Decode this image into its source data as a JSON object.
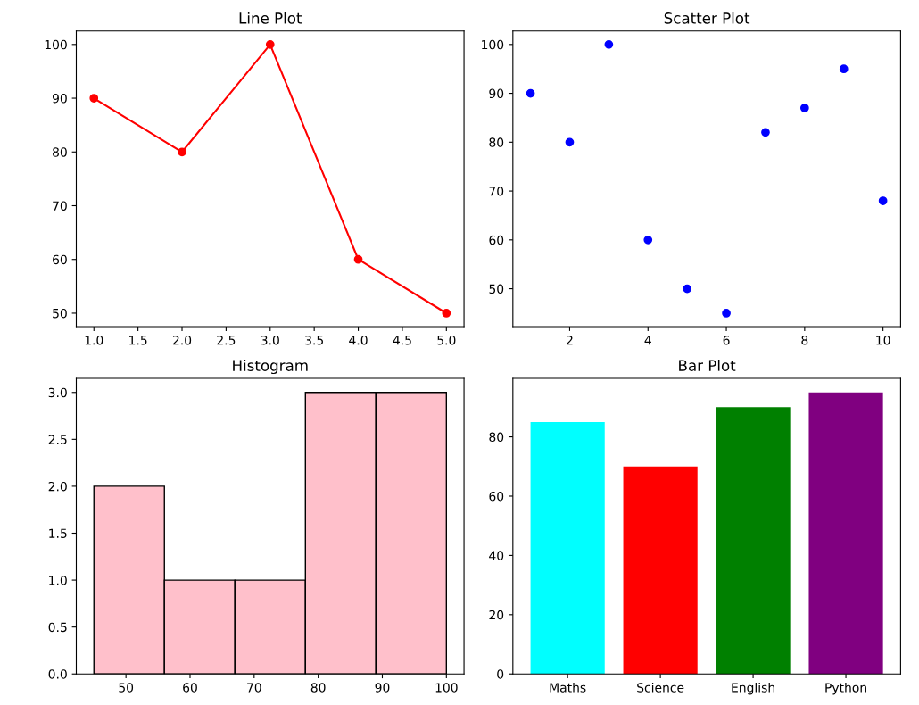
{
  "chart_data": [
    {
      "type": "line",
      "title": "Line Plot",
      "x": [
        1,
        2,
        3,
        4,
        5
      ],
      "series": [
        {
          "color": "#ff0000",
          "values": [
            90,
            80,
            100,
            60,
            50
          ]
        }
      ],
      "marker": "circle",
      "xlim": [
        0.8,
        5.2
      ],
      "ylim": [
        47.5,
        102.5
      ],
      "xticks": [
        {
          "value": 1,
          "label": "1.0"
        },
        {
          "value": 1.5,
          "label": "1.5"
        },
        {
          "value": 2,
          "label": "2.0"
        },
        {
          "value": 2.5,
          "label": "2.5"
        },
        {
          "value": 3,
          "label": "3.0"
        },
        {
          "value": 3.5,
          "label": "3.5"
        },
        {
          "value": 4,
          "label": "4.0"
        },
        {
          "value": 4.5,
          "label": "4.5"
        },
        {
          "value": 5,
          "label": "5.0"
        }
      ],
      "yticks": [
        50,
        60,
        70,
        80,
        90,
        100
      ],
      "grid": false,
      "legend": false
    },
    {
      "type": "scatter",
      "title": "Scatter Plot",
      "x": [
        1,
        2,
        3,
        4,
        5,
        6,
        7,
        8,
        9,
        10
      ],
      "series": [
        {
          "color": "#0000ff",
          "values": [
            90,
            80,
            100,
            60,
            50,
            45,
            82,
            87,
            95,
            68
          ]
        }
      ],
      "marker": "circle",
      "xlim": [
        0.55,
        10.45
      ],
      "ylim": [
        42.25,
        102.75
      ],
      "xticks": [
        2,
        4,
        6,
        8,
        10
      ],
      "yticks": [
        50,
        60,
        70,
        80,
        90,
        100
      ],
      "grid": false,
      "legend": false
    },
    {
      "type": "histogram",
      "title": "Histogram",
      "bins": [
        45,
        56,
        67,
        78,
        89,
        100
      ],
      "values": [
        2,
        1,
        1,
        3,
        3
      ],
      "color": "#ffc0cb",
      "xlim": [
        42.25,
        102.75
      ],
      "ylim": [
        0,
        3.15
      ],
      "xticks": [
        50,
        60,
        70,
        80,
        90,
        100
      ],
      "yticks": [
        {
          "value": 0,
          "label": "0.0"
        },
        {
          "value": 0.5,
          "label": "0.5"
        },
        {
          "value": 1,
          "label": "1.0"
        },
        {
          "value": 1.5,
          "label": "1.5"
        },
        {
          "value": 2,
          "label": "2.0"
        },
        {
          "value": 2.5,
          "label": "2.5"
        },
        {
          "value": 3,
          "label": "3.0"
        }
      ],
      "grid": false,
      "legend": false
    },
    {
      "type": "bar",
      "title": "Bar Plot",
      "categories": [
        "Maths",
        "Science",
        "English",
        "Python"
      ],
      "values": [
        85,
        70,
        90,
        95
      ],
      "colors": [
        "#00ffff",
        "#ff0000",
        "#008000",
        "#800080"
      ],
      "ylim": [
        0,
        99.75
      ],
      "yticks": [
        0,
        20,
        40,
        60,
        80
      ],
      "grid": false,
      "legend": false
    }
  ]
}
